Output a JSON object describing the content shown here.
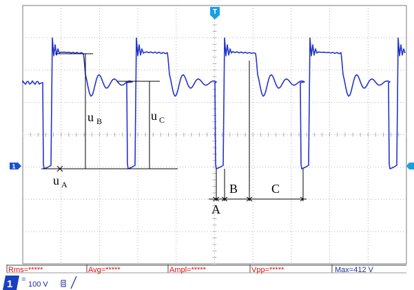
{
  "chart_data": {
    "type": "line",
    "title": "",
    "xlabel": "",
    "ylabel": "",
    "grid": true,
    "grid_divisions": {
      "x": 10,
      "y": 8
    },
    "trigger_marker": "T",
    "channel_marker": "1",
    "series": [
      {
        "values": "Switching waveform: low level uA, overshoot peak then ringing settling to level uC, repeating period"
      }
    ],
    "annotations": {
      "uB": "u",
      "uB_sub": "B",
      "uC": "u",
      "uC_sub": "C",
      "uA": "u",
      "uA_sub": "A",
      "interval_A": "A",
      "interval_B": "B",
      "interval_C": "C"
    },
    "measurements": [
      {
        "label": "Rms=*****"
      },
      {
        "label": "Avg=*****"
      },
      {
        "label": "Ampl=*****"
      },
      {
        "label": "Vpp=*****"
      },
      {
        "label": "Max=412 V"
      }
    ],
    "channel_info": {
      "channel": "1",
      "coupling": "=",
      "scale": "100 V"
    },
    "colors": {
      "trace": "#2233cc",
      "grid": "#9a9a9a",
      "measurement_text": "#dd1111",
      "footer": "#1a2a99"
    }
  }
}
